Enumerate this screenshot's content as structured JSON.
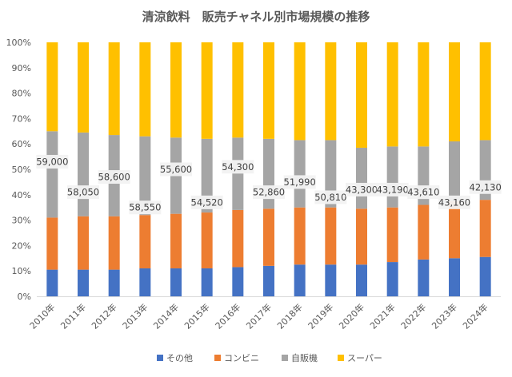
{
  "chart_data": {
    "type": "bar",
    "stacked": true,
    "percent_stacked": true,
    "title": "清涼飲料　販売チャネル別市場規模の推移",
    "categories": [
      "2010年",
      "2011年",
      "2012年",
      "2013年",
      "2014年",
      "2015年",
      "2016年",
      "2017年",
      "2018年",
      "2019年",
      "2020年",
      "2021年",
      "2022年",
      "2023年",
      "2024年"
    ],
    "series": [
      {
        "name": "その他",
        "color": "#4472C4",
        "values": [
          10.5,
          10.5,
          10.5,
          11,
          11,
          11,
          11.5,
          12,
          12.5,
          12.5,
          12.5,
          13.5,
          14.5,
          15,
          15.5
        ]
      },
      {
        "name": "コンビニ",
        "color": "#ED7D31",
        "values": [
          20.5,
          21,
          21,
          21,
          21.5,
          22,
          22.5,
          22.5,
          22.5,
          22.5,
          22,
          21.5,
          21.5,
          22.5,
          22.5
        ]
      },
      {
        "name": "自販機",
        "color": "#A5A5A5",
        "values": [
          34,
          33,
          32,
          31,
          30,
          29,
          28.5,
          27.5,
          26.5,
          26.5,
          24,
          24,
          23,
          23.5,
          23.5
        ]
      },
      {
        "name": "スーパー",
        "color": "#FFC000",
        "values": [
          35,
          35.5,
          36.5,
          37,
          37.5,
          38,
          37.5,
          38,
          38.5,
          38.5,
          41.5,
          41,
          41,
          39,
          38.5
        ]
      }
    ],
    "data_labels": {
      "series": "自販機",
      "values": [
        "59,000",
        "58,050",
        "58,600",
        "58,550",
        "55,600",
        "54,520",
        "54,300",
        "52,860",
        "51,990",
        "50,810",
        "43,300",
        "43,190",
        "43,610",
        "43,160",
        "42,130"
      ],
      "y": [
        53,
        41,
        47,
        35,
        50,
        37,
        51,
        41,
        45,
        39,
        42,
        42,
        41,
        37,
        43
      ]
    },
    "ylim": [
      0,
      100
    ],
    "yticks": [
      "0%",
      "10%",
      "20%",
      "30%",
      "40%",
      "50%",
      "60%",
      "70%",
      "80%",
      "90%",
      "100%"
    ],
    "grid": false,
    "legend": "bottom"
  }
}
